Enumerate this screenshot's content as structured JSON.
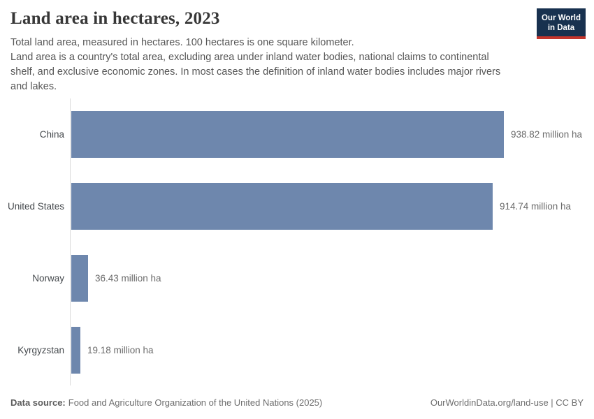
{
  "header": {
    "title": "Land area in hectares, 2023",
    "subtitle_line1": "Total land area, measured in hectares. 100 hectares is one square kilometer.",
    "subtitle_rest": "Land area is a country's total area, excluding area under inland water bodies, national claims to continental shelf, and exclusive economic zones. In most cases the definition of inland water bodies includes major rivers and lakes.",
    "logo": {
      "line1": "Our World",
      "line2": "in Data",
      "bg_color": "#18314f",
      "accent_color": "#c4352c"
    }
  },
  "chart_data": {
    "type": "bar",
    "orientation": "horizontal",
    "title": "Land area in hectares, 2023",
    "categories": [
      "China",
      "United States",
      "Norway",
      "Kyrgyzstan"
    ],
    "values": [
      938.82,
      914.74,
      36.43,
      19.18
    ],
    "value_labels": [
      "938.82 million ha",
      "914.74 million ha",
      "36.43 million ha",
      "19.18 million ha"
    ],
    "unit": "million ha",
    "xlim": [
      0,
      938.82
    ],
    "grid": false,
    "bar_color": "#6e87ad",
    "axis_color": "#dcdcdc"
  },
  "footer": {
    "source_label": "Data source:",
    "source_text": "Food and Agriculture Organization of the United Nations (2025)",
    "credit": "OurWorldinData.org/land-use | CC BY"
  }
}
